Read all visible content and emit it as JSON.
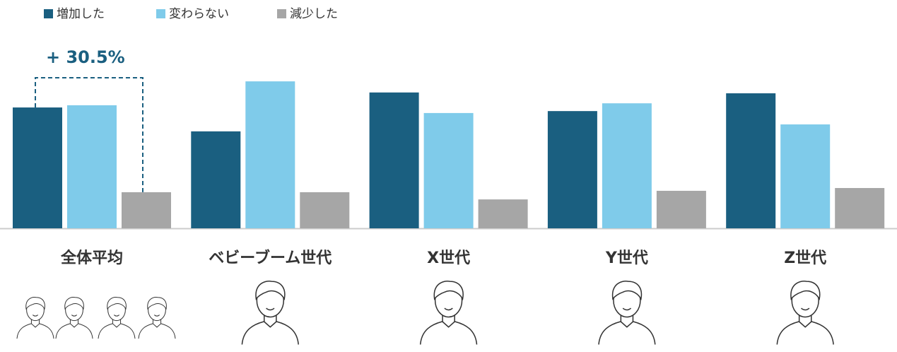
{
  "chart_data": {
    "type": "bar",
    "categories": [
      "全体平均",
      "ベビーブーム世代",
      "X世代",
      "Y世代",
      "Z世代"
    ],
    "series": [
      {
        "name": "増加した",
        "color": "#1a5f80",
        "values": [
          43.5,
          34.9,
          48.9,
          42.2,
          48.6
        ]
      },
      {
        "name": "変わらない",
        "color": "#7fcbea",
        "values": [
          44.3,
          52.9,
          41.5,
          45.0,
          37.4
        ]
      },
      {
        "name": "減少した",
        "color": "#a6a6a6",
        "values": [
          13.0,
          13.0,
          10.4,
          13.5,
          14.5
        ]
      }
    ],
    "annotation": "+ 30.5%"
  }
}
